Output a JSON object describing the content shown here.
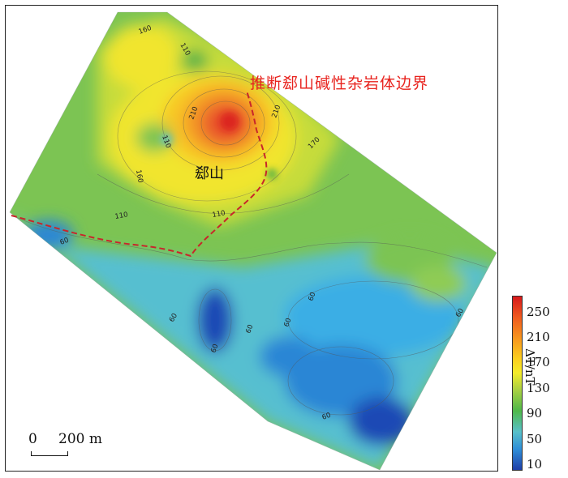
{
  "map": {
    "boundary_label": "推断郄山碱性杂岩体边界",
    "place_label": "郄山",
    "contour_labels": [
      "160",
      "110",
      "210",
      "210",
      "170",
      "110",
      "160",
      "110",
      "110",
      "60",
      "60",
      "60",
      "60",
      "60",
      "60",
      "60",
      "60"
    ],
    "colors": {
      "boundary_line": "#c8262a",
      "low": "#1f3ea8",
      "high": "#d7191c"
    }
  },
  "scale": {
    "zero": "0",
    "distance": "200 m"
  },
  "colorbar": {
    "ticks": [
      "250",
      "210",
      "170",
      "130",
      "90",
      "50",
      "10"
    ],
    "unit": "ΔT/nT"
  }
}
